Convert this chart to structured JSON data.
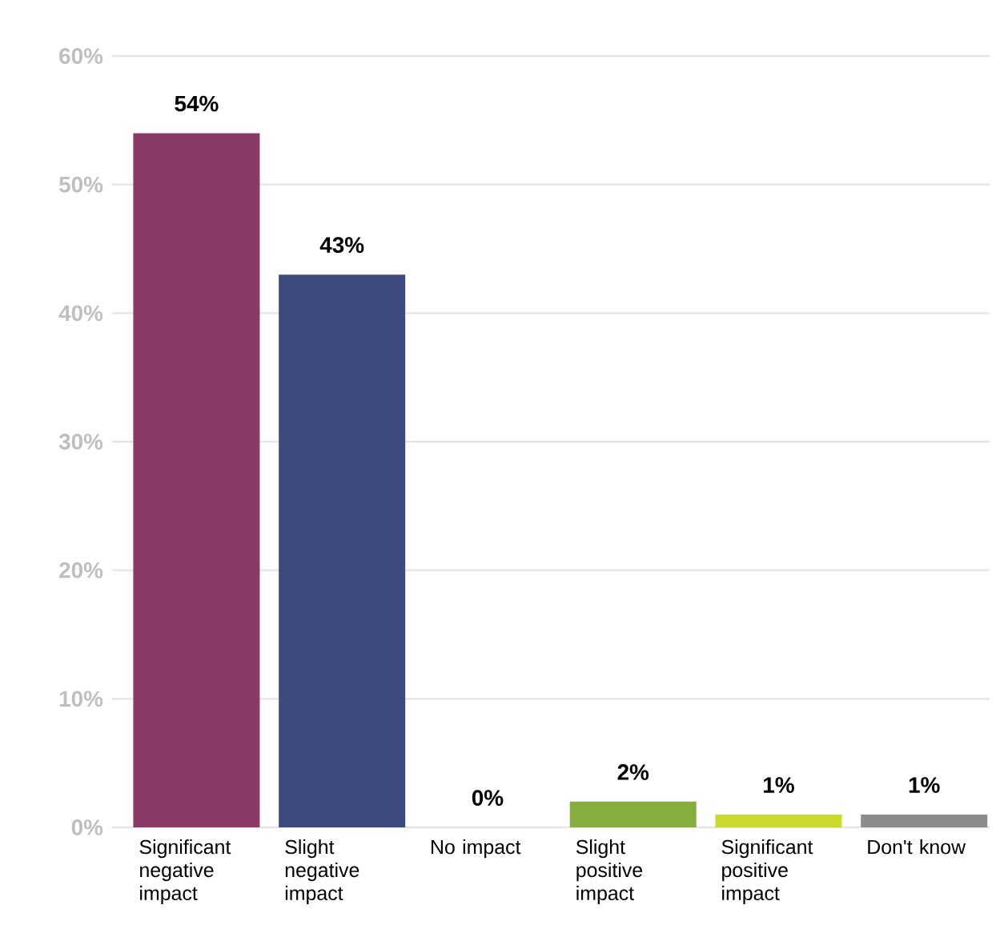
{
  "chart_data": {
    "type": "bar",
    "categories": [
      "Significant negative impact",
      "Slight negative impact",
      "No impact",
      "Slight positive impact",
      "Significant positive impact",
      "Don't know"
    ],
    "values": [
      54,
      43,
      0,
      2,
      1,
      1
    ],
    "colors": [
      "#8b3a66",
      "#3d4a7e",
      null,
      "#86ad3e",
      "#c9d92e",
      "#8c8c8c"
    ],
    "value_labels": [
      "54%",
      "43%",
      "0%",
      "2%",
      "1%",
      "1%"
    ],
    "ylim": [
      0,
      60
    ],
    "yticks": [
      {
        "value": 0,
        "label": "0%"
      },
      {
        "value": 10,
        "label": "10%"
      },
      {
        "value": 20,
        "label": "20%"
      },
      {
        "value": 30,
        "label": "30%"
      },
      {
        "value": 40,
        "label": "40%"
      },
      {
        "value": 50,
        "label": "50%"
      },
      {
        "value": 60,
        "label": "60%"
      }
    ],
    "grid": "y"
  }
}
